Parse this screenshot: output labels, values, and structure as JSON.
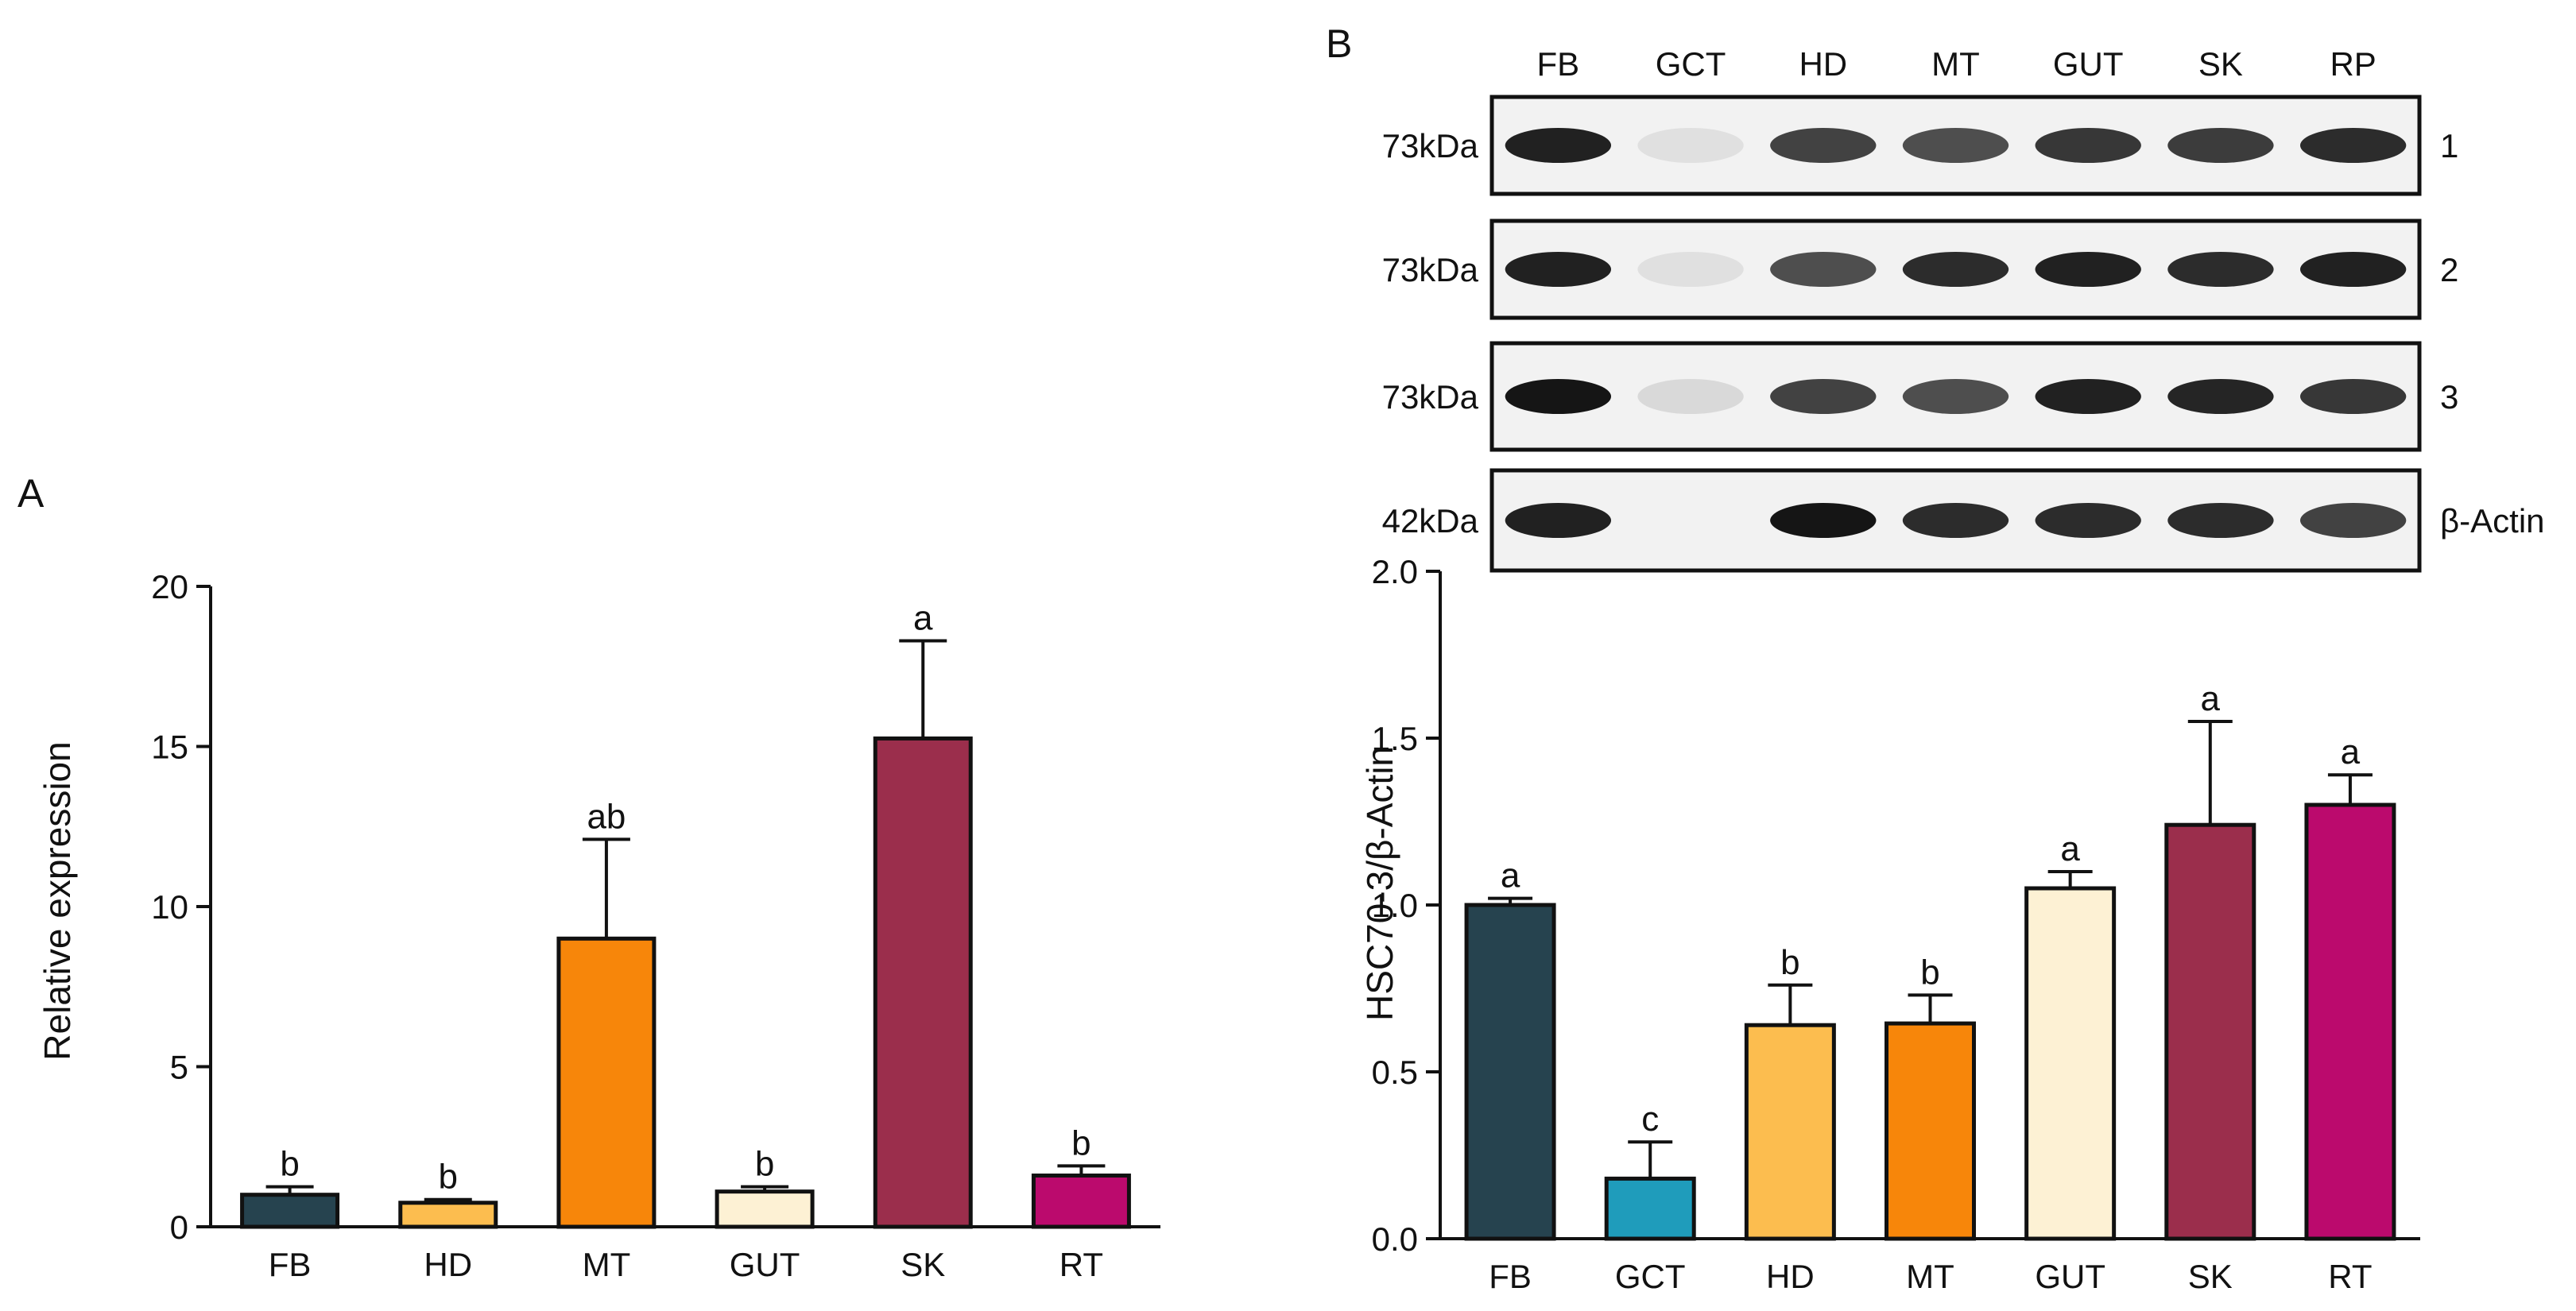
{
  "panels": {
    "a": "A",
    "b": "B"
  },
  "chart_data": [
    {
      "id": "A",
      "type": "bar",
      "title": "",
      "xlabel": "",
      "ylabel": "Relative expression",
      "ylim": [
        0,
        20
      ],
      "yticks": [
        "0",
        "5",
        "10",
        "15",
        "20"
      ],
      "grid": false,
      "categories": [
        "FB",
        "HD",
        "MT",
        "GUT",
        "SK",
        "RT"
      ],
      "values": [
        1.0,
        0.75,
        9.0,
        1.1,
        15.25,
        1.6
      ],
      "errors": [
        0.25,
        0.1,
        3.1,
        0.15,
        3.05,
        0.3
      ],
      "labels": [
        "b",
        "b",
        "ab",
        "b",
        "a",
        "b"
      ],
      "colors": [
        "#26434f",
        "#fcbd4f",
        "#f7860a",
        "#fdf1d4",
        "#9b2e4c",
        "#bb0a6d"
      ]
    },
    {
      "id": "B",
      "type": "bar",
      "title": "",
      "xlabel": "",
      "ylabel": "HSC70-3/β-Actin",
      "ylim": [
        0,
        2.0
      ],
      "yticks": [
        "0.0",
        "0.5",
        "1.0",
        "1.5",
        "2.0"
      ],
      "grid": false,
      "categories": [
        "FB",
        "GCT",
        "HD",
        "MT",
        "GUT",
        "SK",
        "RT"
      ],
      "values": [
        1.0,
        0.18,
        0.64,
        0.645,
        1.05,
        1.24,
        1.3
      ],
      "errors": [
        0.02,
        0.11,
        0.12,
        0.085,
        0.05,
        0.31,
        0.09
      ],
      "labels": [
        "a",
        "c",
        "b",
        "b",
        "a",
        "a",
        "a"
      ],
      "colors": [
        "#26434f",
        "#1f9cbb",
        "#fcbd4f",
        "#f7860a",
        "#fdf1d4",
        "#9b2e4c",
        "#bb0a6d"
      ]
    }
  ],
  "blot": {
    "lane_labels": [
      "FB",
      "GCT",
      "HD",
      "MT",
      "GUT",
      "SK",
      "RP"
    ],
    "rows": [
      {
        "mw": "73kDa",
        "tag": "1",
        "intensities": [
          0.9,
          0.05,
          0.75,
          0.7,
          0.8,
          0.78,
          0.85
        ]
      },
      {
        "mw": "73kDa",
        "tag": "2",
        "intensities": [
          0.9,
          0.05,
          0.7,
          0.85,
          0.9,
          0.85,
          0.9
        ]
      },
      {
        "mw": "73kDa",
        "tag": "3",
        "intensities": [
          0.95,
          0.08,
          0.75,
          0.7,
          0.9,
          0.88,
          0.8
        ]
      },
      {
        "mw": "42kDa",
        "tag": "β-Actin",
        "intensities": [
          0.9,
          0.0,
          0.95,
          0.85,
          0.85,
          0.85,
          0.75
        ]
      }
    ]
  }
}
